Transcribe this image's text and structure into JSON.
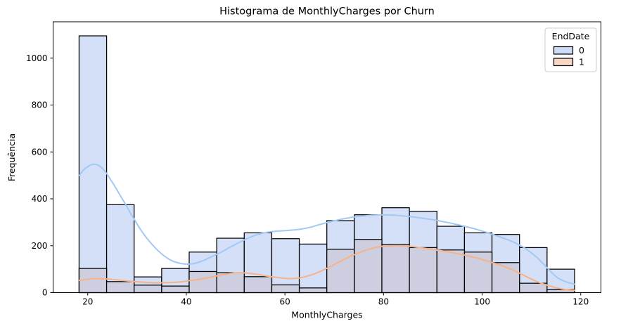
{
  "title": "Histograma de MonthlyCharges por Churn",
  "chart_data": {
    "type": "bar",
    "subtype": "layered-histogram-with-kde",
    "title": "Histograma de MonthlyCharges por Churn",
    "xlabel": "MonthlyCharges",
    "ylabel": "Frequência",
    "x_ticks": [
      20,
      40,
      60,
      80,
      100,
      120
    ],
    "y_ticks": [
      0,
      200,
      400,
      600,
      800,
      1000
    ],
    "xlim": [
      12.98,
      124.1
    ],
    "ylim": [
      0,
      1155
    ],
    "grid": false,
    "bin_start": 18.25,
    "bin_width": 5.5833,
    "bin_count": 18,
    "legend": {
      "title": "EndDate",
      "position": "upper right",
      "entries": [
        {
          "label": "0",
          "swatch_color": "#cfdcf6",
          "swatch_border": "#000000"
        },
        {
          "label": "1",
          "swatch_color": "#f8d6c3",
          "swatch_border": "#000000"
        }
      ]
    },
    "series": [
      {
        "name": "0",
        "bar_fill": "#d4e0f8",
        "bar_edge": "#000000",
        "kde_color": "#a1c9f4",
        "values": [
          1095,
          375,
          67,
          103,
          173,
          232,
          255,
          230,
          207,
          307,
          332,
          362,
          347,
          283,
          255,
          248,
          192,
          100
        ],
        "kde_points": [
          [
            18.3,
            500
          ],
          [
            19.5,
            530
          ],
          [
            21.3,
            548
          ],
          [
            23,
            530
          ],
          [
            25,
            470
          ],
          [
            27,
            400
          ],
          [
            29,
            328
          ],
          [
            31,
            260
          ],
          [
            33,
            207
          ],
          [
            35,
            165
          ],
          [
            37,
            137
          ],
          [
            39,
            124
          ],
          [
            41,
            122
          ],
          [
            43,
            133
          ],
          [
            45,
            152
          ],
          [
            47,
            172
          ],
          [
            49,
            195
          ],
          [
            51,
            217
          ],
          [
            53,
            237
          ],
          [
            55,
            251
          ],
          [
            57,
            259
          ],
          [
            59,
            263
          ],
          [
            61,
            266
          ],
          [
            63,
            270
          ],
          [
            65,
            278
          ],
          [
            67,
            290
          ],
          [
            69,
            301
          ],
          [
            71,
            311
          ],
          [
            73,
            319
          ],
          [
            75,
            325
          ],
          [
            77,
            329
          ],
          [
            79,
            331
          ],
          [
            81,
            331
          ],
          [
            83,
            329
          ],
          [
            85,
            325
          ],
          [
            87,
            320
          ],
          [
            89,
            314
          ],
          [
            91,
            307
          ],
          [
            93,
            299
          ],
          [
            95,
            290
          ],
          [
            97,
            280
          ],
          [
            99,
            269
          ],
          [
            101,
            256
          ],
          [
            103,
            242
          ],
          [
            105,
            227
          ],
          [
            107,
            209
          ],
          [
            109,
            185
          ],
          [
            111,
            152
          ],
          [
            113,
            110
          ],
          [
            115,
            68
          ],
          [
            117,
            46
          ],
          [
            118.75,
            36
          ]
        ]
      },
      {
        "name": "1",
        "bar_fill": "#cdcee0",
        "bar_edge": "#000000",
        "kde_color": "#f8b287",
        "values": [
          103,
          47,
          32,
          28,
          90,
          85,
          68,
          33,
          20,
          185,
          227,
          205,
          192,
          182,
          173,
          128,
          40,
          13
        ],
        "kde_points": [
          [
            18.3,
            52
          ],
          [
            20,
            57
          ],
          [
            21.5,
            60
          ],
          [
            23,
            59
          ],
          [
            25,
            56
          ],
          [
            27,
            52
          ],
          [
            29,
            48
          ],
          [
            31,
            45
          ],
          [
            33,
            43
          ],
          [
            35,
            42
          ],
          [
            37,
            43
          ],
          [
            39,
            46
          ],
          [
            41,
            52
          ],
          [
            43,
            58
          ],
          [
            45,
            66
          ],
          [
            47,
            75
          ],
          [
            49,
            82
          ],
          [
            50.5,
            85
          ],
          [
            52,
            84
          ],
          [
            54,
            79
          ],
          [
            56,
            72
          ],
          [
            58,
            66
          ],
          [
            60,
            61
          ],
          [
            61.5,
            60
          ],
          [
            63,
            63
          ],
          [
            65,
            73
          ],
          [
            67,
            89
          ],
          [
            69,
            109
          ],
          [
            71,
            131
          ],
          [
            73,
            152
          ],
          [
            75,
            170
          ],
          [
            77,
            185
          ],
          [
            79,
            195
          ],
          [
            81,
            199
          ],
          [
            83,
            200
          ],
          [
            85,
            198
          ],
          [
            87,
            193
          ],
          [
            89,
            187
          ],
          [
            91,
            181
          ],
          [
            93,
            174
          ],
          [
            95,
            167
          ],
          [
            97,
            157
          ],
          [
            99,
            147
          ],
          [
            101,
            135
          ],
          [
            103,
            122
          ],
          [
            105,
            107
          ],
          [
            107,
            89
          ],
          [
            109,
            68
          ],
          [
            111,
            48
          ],
          [
            113,
            33
          ],
          [
            115,
            21
          ],
          [
            117,
            13
          ],
          [
            118.75,
            10
          ]
        ]
      }
    ]
  }
}
